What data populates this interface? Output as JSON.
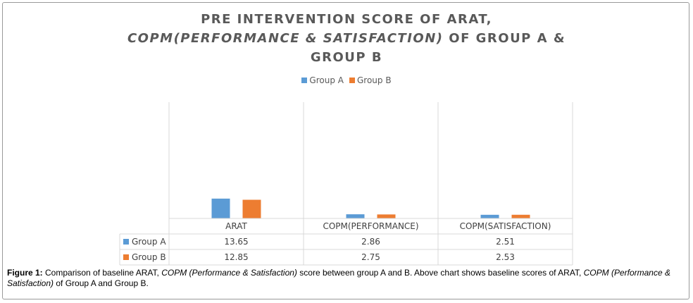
{
  "chart_data": {
    "type": "bar",
    "title_parts": [
      {
        "text": "PRE INTERVENTION SCORE OF ARAT, ",
        "italic": false
      },
      {
        "text": "COPM",
        "italic": true
      },
      {
        "text": "(PERFORMANCE & SATISFACTION)",
        "italic": true
      },
      {
        "text": " OF GROUP A & GROUP B",
        "italic": false
      }
    ],
    "categories": [
      "ARAT",
      "COPM(PERFORMANCE)",
      "COPM(SATISFACTION)"
    ],
    "series": [
      {
        "name": "Group A",
        "color": "#5b9bd5",
        "values": [
          13.65,
          2.86,
          2.51
        ]
      },
      {
        "name": "Group B",
        "color": "#ed7d31",
        "values": [
          12.85,
          2.75,
          2.53
        ]
      }
    ],
    "value_labels": [
      [
        "13.65",
        "2.86",
        "2.51"
      ],
      [
        "12.85",
        "2.75",
        "2.53"
      ]
    ],
    "legend_position": "top",
    "ylim": [
      0,
      80
    ],
    "grid": false,
    "data_table": true
  },
  "caption": {
    "label": "Figure 1:",
    "parts": [
      {
        "text": " Comparison of baseline ARAT, ",
        "italic": false
      },
      {
        "text": "COPM (Performance & Satisfaction)",
        "italic": true
      },
      {
        "text": " score between group A and B. Above chart shows baseline scores of ARAT, ",
        "italic": false
      },
      {
        "text": "COPM (Performance & Satisfaction)",
        "italic": true
      },
      {
        "text": " of Group A and Group B.",
        "italic": false
      }
    ]
  }
}
